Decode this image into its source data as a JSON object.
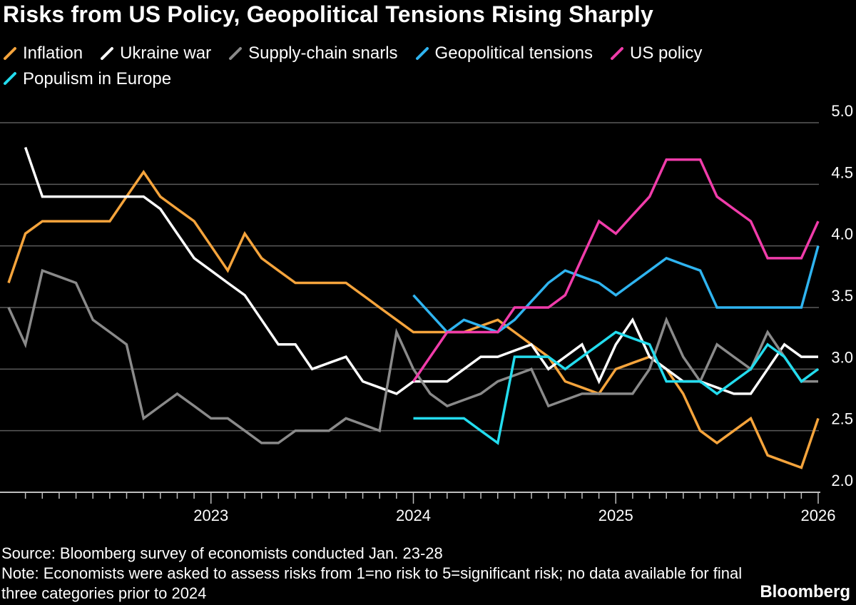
{
  "title": "Risks from US Policy, Geopolitical Tensions Rising Sharply",
  "legend": [
    {
      "label": "Inflation",
      "color": "#f5a43c"
    },
    {
      "label": "Ukraine war",
      "color": "#ffffff"
    },
    {
      "label": "Supply-chain snarls",
      "color": "#8a8a8a"
    },
    {
      "label": "Geopolitical tensions",
      "color": "#2fb4f0"
    },
    {
      "label": "US policy",
      "color": "#f03caa"
    },
    {
      "label": "Populism in Europe",
      "color": "#23dcee"
    }
  ],
  "source": "Source: Bloomberg survey of economists conducted Jan. 23-28",
  "note": "Note: Economists were asked to assess risks from 1=no risk to 5=significant risk; no data available for final three categories prior to 2024",
  "brand": "Bloomberg",
  "chart_data": {
    "type": "line",
    "title": "Risks from US Policy, Geopolitical Tensions Rising Sharply",
    "xlabel": "",
    "ylabel": "",
    "ylim": [
      2.0,
      5.0
    ],
    "yticks": [
      "2.0",
      "2.5",
      "3.0",
      "3.5",
      "4.0",
      "4.5",
      "5.0"
    ],
    "xticks": [
      {
        "label": "2023",
        "x": 2023.0
      },
      {
        "label": "2024",
        "x": 2024.0
      },
      {
        "label": "2025",
        "x": 2025.0
      },
      {
        "label": "2026",
        "x": 2026.0
      }
    ],
    "xlim": [
      2022.0,
      2026.08
    ],
    "grid": true,
    "series": [
      {
        "name": "Inflation",
        "color": "#f5a43c",
        "x": [
          2022.0,
          2022.083,
          2022.167,
          2022.25,
          2022.333,
          2022.417,
          2022.5,
          2022.583,
          2022.667,
          2022.75,
          2022.833,
          2022.917,
          2023.0,
          2023.083,
          2023.167,
          2023.25,
          2023.333,
          2023.417,
          2023.5,
          2023.583,
          2023.667,
          2023.75,
          2023.833,
          2023.917,
          2024.0,
          2024.083,
          2024.167,
          2024.25,
          2024.333,
          2024.417,
          2024.5,
          2024.583,
          2024.667,
          2024.75,
          2024.833,
          2024.917,
          2025.0,
          2025.083,
          2025.167,
          2025.25,
          2025.333,
          2025.417,
          2025.5,
          2025.583,
          2025.667,
          2025.75,
          2025.833,
          2025.917,
          2026.0
        ],
        "y": [
          3.7,
          4.1,
          4.2,
          4.2,
          4.2,
          4.2,
          4.2,
          4.4,
          4.6,
          4.4,
          4.3,
          4.2,
          4.0,
          3.8,
          4.1,
          3.9,
          3.8,
          3.7,
          3.7,
          3.7,
          3.7,
          3.6,
          3.5,
          3.4,
          3.3,
          3.3,
          3.3,
          3.3,
          3.35,
          3.4,
          3.3,
          3.2,
          3.1,
          2.9,
          2.85,
          2.8,
          3.0,
          3.05,
          3.1,
          3.0,
          2.8,
          2.5,
          2.4,
          2.5,
          2.6,
          2.3,
          2.25,
          2.2,
          2.6
        ]
      },
      {
        "name": "Ukraine war",
        "color": "#ffffff",
        "x": [
          2022.083,
          2022.167,
          2022.25,
          2022.333,
          2022.417,
          2022.5,
          2022.583,
          2022.667,
          2022.75,
          2022.833,
          2022.917,
          2023.0,
          2023.083,
          2023.167,
          2023.25,
          2023.333,
          2023.417,
          2023.5,
          2023.583,
          2023.667,
          2023.75,
          2023.833,
          2023.917,
          2024.0,
          2024.083,
          2024.167,
          2024.25,
          2024.333,
          2024.417,
          2024.5,
          2024.583,
          2024.667,
          2024.75,
          2024.833,
          2024.917,
          2025.0,
          2025.083,
          2025.167,
          2025.25,
          2025.333,
          2025.417,
          2025.5,
          2025.583,
          2025.667,
          2025.75,
          2025.833,
          2025.917,
          2026.0
        ],
        "y": [
          4.8,
          4.4,
          4.4,
          4.4,
          4.4,
          4.4,
          4.4,
          4.4,
          4.3,
          4.1,
          3.9,
          3.8,
          3.7,
          3.6,
          3.4,
          3.2,
          3.2,
          3.0,
          3.05,
          3.1,
          2.9,
          2.85,
          2.8,
          2.9,
          2.9,
          2.9,
          3.0,
          3.1,
          3.1,
          3.15,
          3.2,
          3.0,
          3.1,
          3.2,
          2.9,
          3.2,
          3.4,
          3.1,
          3.0,
          2.9,
          2.9,
          2.85,
          2.8,
          2.8,
          3.0,
          3.2,
          3.1,
          3.1
        ]
      },
      {
        "name": "Supply-chain snarls",
        "color": "#8a8a8a",
        "x": [
          2022.0,
          2022.083,
          2022.167,
          2022.25,
          2022.333,
          2022.417,
          2022.5,
          2022.583,
          2022.667,
          2022.75,
          2022.833,
          2022.917,
          2023.0,
          2023.083,
          2023.167,
          2023.25,
          2023.333,
          2023.417,
          2023.5,
          2023.583,
          2023.667,
          2023.75,
          2023.833,
          2023.917,
          2024.0,
          2024.083,
          2024.167,
          2024.25,
          2024.333,
          2024.417,
          2024.5,
          2024.583,
          2024.667,
          2024.75,
          2024.833,
          2024.917,
          2025.0,
          2025.083,
          2025.167,
          2025.25,
          2025.333,
          2025.417,
          2025.5,
          2025.583,
          2025.667,
          2025.75,
          2025.833,
          2025.917,
          2026.0
        ],
        "y": [
          3.5,
          3.2,
          3.8,
          3.75,
          3.7,
          3.4,
          3.3,
          3.2,
          2.6,
          2.7,
          2.8,
          2.7,
          2.6,
          2.6,
          2.5,
          2.4,
          2.4,
          2.5,
          2.5,
          2.5,
          2.6,
          2.55,
          2.5,
          3.3,
          3.0,
          2.8,
          2.7,
          2.75,
          2.8,
          2.9,
          2.95,
          3.0,
          2.7,
          2.75,
          2.8,
          2.8,
          2.8,
          2.8,
          3.0,
          3.4,
          3.1,
          2.9,
          3.2,
          3.1,
          3.0,
          3.3,
          3.1,
          2.9,
          2.9
        ]
      },
      {
        "name": "Geopolitical tensions",
        "color": "#2fb4f0",
        "x": [
          2024.0,
          2024.083,
          2024.167,
          2024.25,
          2024.333,
          2024.417,
          2024.5,
          2024.583,
          2024.667,
          2024.75,
          2024.833,
          2024.917,
          2025.0,
          2025.083,
          2025.167,
          2025.25,
          2025.333,
          2025.417,
          2025.5,
          2025.583,
          2025.667,
          2025.75,
          2025.833,
          2025.917,
          2026.0
        ],
        "y": [
          3.6,
          3.45,
          3.3,
          3.4,
          3.35,
          3.3,
          3.4,
          3.55,
          3.7,
          3.8,
          3.75,
          3.7,
          3.6,
          3.7,
          3.8,
          3.9,
          3.85,
          3.8,
          3.5,
          3.5,
          3.5,
          3.5,
          3.5,
          3.5,
          4.0
        ]
      },
      {
        "name": "US policy",
        "color": "#f03caa",
        "x": [
          2024.0,
          2024.083,
          2024.167,
          2024.25,
          2024.333,
          2024.417,
          2024.5,
          2024.583,
          2024.667,
          2024.75,
          2024.833,
          2024.917,
          2025.0,
          2025.083,
          2025.167,
          2025.25,
          2025.333,
          2025.417,
          2025.5,
          2025.583,
          2025.667,
          2025.75,
          2025.833,
          2025.917,
          2026.0
        ],
        "y": [
          2.9,
          3.1,
          3.3,
          3.3,
          3.3,
          3.3,
          3.5,
          3.5,
          3.5,
          3.6,
          3.9,
          4.2,
          4.1,
          4.25,
          4.4,
          4.7,
          4.7,
          4.7,
          4.4,
          4.3,
          4.2,
          3.9,
          3.9,
          3.9,
          4.2
        ]
      },
      {
        "name": "Populism in Europe",
        "color": "#23dcee",
        "x": [
          2024.0,
          2024.083,
          2024.167,
          2024.25,
          2024.333,
          2024.417,
          2024.5,
          2024.583,
          2024.667,
          2024.75,
          2024.833,
          2024.917,
          2025.0,
          2025.083,
          2025.167,
          2025.25,
          2025.333,
          2025.417,
          2025.5,
          2025.583,
          2025.667,
          2025.75,
          2025.833,
          2025.917,
          2026.0
        ],
        "y": [
          2.6,
          2.6,
          2.6,
          2.6,
          2.5,
          2.4,
          3.1,
          3.1,
          3.1,
          3.0,
          3.1,
          3.2,
          3.3,
          3.25,
          3.2,
          2.9,
          2.9,
          2.9,
          2.8,
          2.9,
          3.0,
          3.2,
          3.1,
          2.9,
          3.0
        ]
      }
    ]
  }
}
